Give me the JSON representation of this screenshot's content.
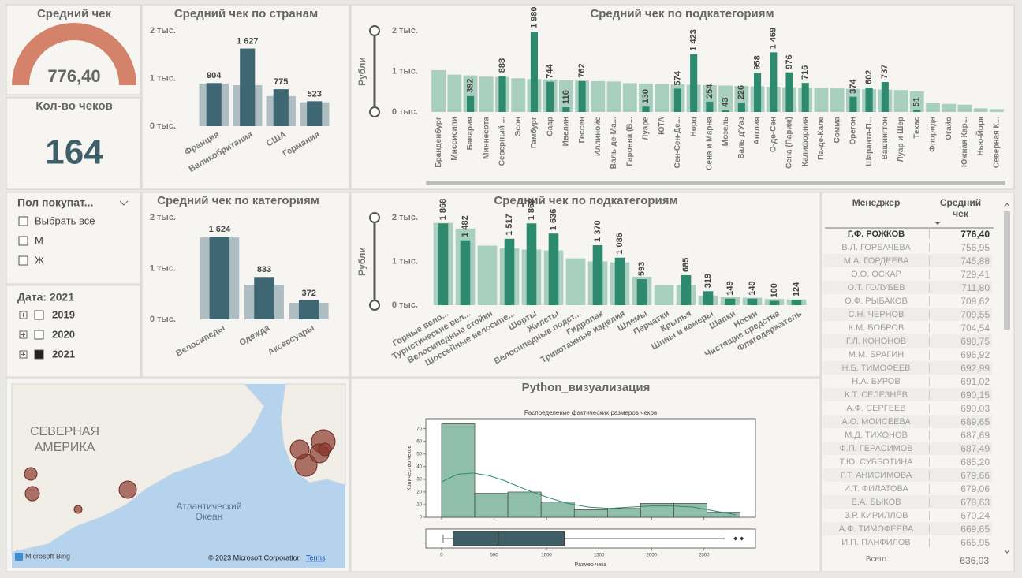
{
  "gauge": {
    "title": "Средний чек",
    "value": "776,40"
  },
  "card": {
    "title": "Кол-во чеков",
    "value": "164"
  },
  "gender_slicer": {
    "title": "Пол покупат...",
    "options": [
      "Выбрать все",
      "М",
      "Ж"
    ]
  },
  "date_slicer": {
    "title": "Дата: 2021",
    "options": [
      "2019",
      "2020",
      "2021"
    ],
    "selected": "2021"
  },
  "map": {
    "continent": [
      "СЕВЕРНАЯ",
      "АМЕРИКА"
    ],
    "ocean": [
      "Атлантический",
      "Океан"
    ],
    "logo": "Microsoft Bing",
    "copyright": "© 2023 Microsoft Corporation",
    "terms": "Terms"
  },
  "table": {
    "columns": [
      "Менеджер",
      "Средний чек"
    ],
    "rows": [
      [
        "Г.Ф. РОЖКОВ",
        "776,40"
      ],
      [
        "В.Л. ГОРБАЧЕВА",
        "756,95"
      ],
      [
        "М.А. ГОРДЕЕВА",
        "745,88"
      ],
      [
        "О.О. ОСКАР",
        "729,41"
      ],
      [
        "О.Т. ГОЛУБЕВ",
        "711,80"
      ],
      [
        "О.Ф. РЫБАКОВ",
        "709,62"
      ],
      [
        "С.Н. ЧЕРНОВ",
        "709,55"
      ],
      [
        "К.М. БОБРОВ",
        "704,54"
      ],
      [
        "Г.Л. КОНОНОВ",
        "698,75"
      ],
      [
        "М.М. БРАГИН",
        "696,92"
      ],
      [
        "Н.Б. ТИМОФЕЕВ",
        "692,99"
      ],
      [
        "Н.А. БУРОВ",
        "691,02"
      ],
      [
        "К.Т. СЕЛЕЗНЁВ",
        "690,15"
      ],
      [
        "А.Ф. СЕРГЕЕВ",
        "690,03"
      ],
      [
        "А.О. МОИСЕЕВА",
        "689,65"
      ],
      [
        "М.Д. ТИХОНОВ",
        "687,69"
      ],
      [
        "Ф.П. ГЕРАСИМОВ",
        "687,49"
      ],
      [
        "Т.Ю. СУББОТИНА",
        "685,20"
      ],
      [
        "Г.Т. АНИСИМОВА",
        "679,66"
      ],
      [
        "И.Т. ФИЛАТОВА",
        "679,06"
      ],
      [
        "Е.А. БЫКОВ",
        "678,63"
      ],
      [
        "З.Р. КИРИЛЛОВ",
        "670,24"
      ],
      [
        "А.Ф. ТИМОФЕЕВА",
        "669,65"
      ],
      [
        "И.П. ПАНФИЛОВ",
        "665,95"
      ]
    ],
    "total": [
      "Всего",
      "636,03"
    ]
  },
  "chart_data": [
    {
      "type": "bar",
      "title": "Средний чек по странам",
      "categories": [
        "Франция",
        "Великобритания",
        "США",
        "Германия"
      ],
      "series": [
        {
          "color": "#aebdc1",
          "values": [
            890,
            860,
            630,
            500
          ]
        },
        {
          "color": "#3f6673",
          "values": [
            904,
            1627,
            775,
            523
          ],
          "value_labels": [
            "904",
            "1 627",
            "775",
            "523"
          ]
        }
      ],
      "ylim": [
        0,
        2000
      ],
      "yticks": [
        {
          "value": 0,
          "label": "0 тыс."
        },
        {
          "value": 1000,
          "label": "1 тыс."
        },
        {
          "value": 2000,
          "label": "2 тыс."
        }
      ],
      "grid": false
    },
    {
      "type": "bar",
      "title": "Средний чек по подкатегориям",
      "ylabel": "Рубли",
      "categories": [
        "Бранденбург",
        "Миссисипи",
        "Бавария",
        "Миннесота",
        "Северный ...",
        "Эсон",
        "Гамбург",
        "Саар",
        "Ивелин",
        "Гессен",
        "Иллинойс",
        "Валь-де-Ма...",
        "Гаронна (В...",
        "Луаре",
        "ЮТА",
        "Сен-Сен-Де...",
        "Норд",
        "Сена и Марна",
        "Мозель",
        "Валь д'Уаз",
        "Англия",
        "О-де-Сен",
        "Сена (Париж)",
        "Калифорния",
        "Па-де-Кале",
        "Сомма",
        "Орегон",
        "Шаранта-П...",
        "Вашингтон",
        "Луар и Шер",
        "Техас",
        "Флорида",
        "Огайо",
        "Южная Кар...",
        "Нью-Йорк",
        "Северная К..."
      ],
      "series": [
        {
          "color": "#a8cfbf",
          "values": [
            1030,
            920,
            900,
            870,
            860,
            830,
            810,
            800,
            780,
            770,
            760,
            750,
            710,
            700,
            690,
            680,
            670,
            660,
            650,
            640,
            630,
            620,
            610,
            600,
            590,
            580,
            570,
            560,
            550,
            540,
            510,
            230,
            200,
            180,
            90,
            70
          ]
        },
        {
          "color": "#2e8a6e",
          "values": [
            null,
            null,
            392,
            null,
            888,
            null,
            1980,
            744,
            116,
            762,
            null,
            null,
            null,
            130,
            null,
            574,
            1423,
            254,
            43,
            226,
            958,
            1469,
            976,
            716,
            null,
            null,
            374,
            602,
            737,
            null,
            51,
            null,
            null,
            null,
            null,
            null
          ],
          "value_labels": [
            null,
            null,
            "392",
            null,
            "888",
            null,
            "1 980",
            "744",
            "116",
            "762",
            null,
            null,
            null,
            "130",
            null,
            "574",
            "1 423",
            "254",
            "43",
            "226",
            "958",
            "1 469",
            "976",
            "716",
            null,
            null,
            "374",
            "602",
            "737",
            null,
            "51",
            null,
            null,
            null,
            null,
            null
          ]
        }
      ],
      "ylim": [
        0,
        2000
      ],
      "yticks": [
        {
          "value": 0,
          "label": "0 тыс."
        },
        {
          "value": 1000,
          "label": "1 тыс."
        },
        {
          "value": 2000,
          "label": "2 тыс."
        }
      ],
      "grid": false
    },
    {
      "type": "bar",
      "title": "Средний чек по категориям",
      "categories": [
        "Велосипеды",
        "Одежда",
        "Аксессуары"
      ],
      "series": [
        {
          "color": "#aebdc1",
          "values": [
            1610,
            680,
            325
          ]
        },
        {
          "color": "#3f6673",
          "values": [
            1624,
            833,
            372
          ],
          "value_labels": [
            "1 624",
            "833",
            "372"
          ]
        }
      ],
      "ylim": [
        0,
        2000
      ],
      "yticks": [
        {
          "value": 0,
          "label": "0 тыс."
        },
        {
          "value": 1000,
          "label": "1 тыс."
        },
        {
          "value": 2000,
          "label": "2 тыс."
        }
      ],
      "grid": false
    },
    {
      "type": "bar",
      "title": "Средний чек по подкатегориям",
      "ylabel": "Рубли",
      "categories": [
        "Горные вело...",
        "Туристические вел...",
        "Велосипедные стойки",
        "Шоссейные велосипе...",
        "Шорты",
        "Жилеты",
        "Велосипедные подст...",
        "Гидропак",
        "Трикотажные изделия",
        "Шлемы",
        "Перчатки",
        "Крылья",
        "Шины и камеры",
        "Шапки",
        "Носки",
        "Чистящие средства",
        "Флягодержатель"
      ],
      "series": [
        {
          "color": "#a8cfbf",
          "values": [
            1880,
            1750,
            1360,
            1300,
            1270,
            1250,
            1070,
            1000,
            980,
            650,
            460,
            460,
            220,
            180,
            170,
            140,
            130
          ]
        },
        {
          "color": "#2e8a6e",
          "values": [
            1868,
            1482,
            null,
            1517,
            1869,
            1636,
            null,
            1370,
            1086,
            593,
            null,
            685,
            319,
            149,
            149,
            100,
            124
          ],
          "value_labels": [
            "1 868",
            "1 482",
            null,
            "1 517",
            "1 869",
            "1 636",
            null,
            "1 370",
            "1 086",
            "593",
            null,
            "685",
            "319",
            "149",
            "149",
            "100",
            "124"
          ]
        }
      ],
      "ylim": [
        0,
        2000
      ],
      "yticks": [
        {
          "value": 0,
          "label": "0 тыс."
        },
        {
          "value": 1000,
          "label": "1 тыс."
        },
        {
          "value": 2000,
          "label": "2 тыс."
        }
      ],
      "grid": false
    },
    {
      "type": "histogram",
      "panel_title": "Python_визуализация",
      "title": "Распределение фактических размеров чеков",
      "xlabel": "Размер чека",
      "ylabel": "Количество чеков",
      "bins": [
        0,
        316,
        632,
        948,
        1264,
        1580,
        1896,
        2212,
        2528,
        2844
      ],
      "counts": [
        74,
        19,
        20,
        12,
        6,
        7,
        11,
        11,
        4
      ],
      "color": "#8fbfaa",
      "xlim": [
        -150,
        2990
      ],
      "ylim": [
        0,
        78
      ],
      "xticks": [
        0,
        500,
        1000,
        1500,
        2000,
        2500
      ],
      "yticks": [
        0,
        10,
        20,
        30,
        40,
        50,
        60,
        70
      ],
      "kde": {
        "color": "#2e8a6e",
        "x": [
          0,
          150,
          300,
          450,
          600,
          800,
          1000,
          1200,
          1400,
          1600,
          1800,
          2000,
          2200,
          2400,
          2600,
          2800
        ],
        "y": [
          28,
          34,
          35,
          33,
          29,
          22,
          16,
          11,
          8,
          7,
          8,
          9,
          9,
          8,
          5,
          2
        ]
      },
      "box": {
        "color": "#3e5f66",
        "min": 15,
        "q1": 110,
        "median": 540,
        "q3": 1170,
        "max": 2700,
        "outliers": [
          2800,
          2860
        ]
      }
    }
  ]
}
